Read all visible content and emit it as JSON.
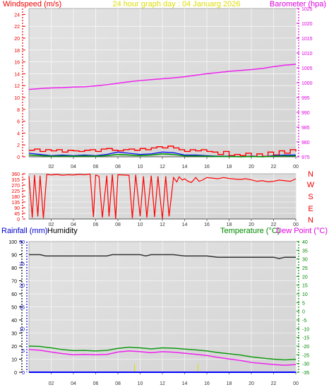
{
  "header": {
    "wind_title": "Windspeed (m/s)",
    "graph_title": "24 hour graph day : 04 Januarg 2026",
    "baro_title": "Barometer (hpa)"
  },
  "lower_header": {
    "rain_title": "Rainfall (mm)",
    "humidity_title": "Humidity",
    "temp_title": "Temperature (°C)",
    "dew_title": "Dew Point (°C)"
  },
  "compass": [
    "N",
    "W",
    "S",
    "E",
    "N"
  ],
  "colors": {
    "plot_bg_light": "#e3e3e3",
    "plot_bg_dark": "#d4d4d4",
    "wind_title": "#ee0000",
    "graph_title": "#dddd00",
    "baro_title": "#dd00dd",
    "rain_title": "#0000cc",
    "humidity_title": "#000000",
    "temp_title": "#008800",
    "dew_title": "#dd00dd",
    "compass": "#ee0000"
  },
  "chart_data": [
    {
      "id": "wind_baro",
      "type": "line",
      "x_ticks": [
        "02",
        "04",
        "06",
        "08",
        "10",
        "12",
        "14",
        "16",
        "18",
        "20",
        "22",
        "00"
      ],
      "ylim_left": [
        0,
        25
      ],
      "yticks_left": [
        "24",
        "22",
        "20",
        "18",
        "16",
        "14",
        "12",
        "10",
        "8",
        "6",
        "4",
        "2",
        "0"
      ],
      "ylim_right": [
        975,
        1025
      ],
      "yticks_right": [
        "1025",
        "1020",
        "1015",
        "1010",
        "1005",
        "1000",
        "995",
        "990",
        "985",
        "980",
        "975"
      ],
      "series": [
        {
          "name": "Barometer",
          "axis": "right",
          "color": "#ee22ee",
          "x": [
            0,
            1,
            2,
            3,
            4,
            5,
            6,
            7,
            8,
            9,
            10,
            11,
            12,
            13,
            14,
            15,
            16,
            17,
            18,
            19,
            20,
            21,
            22,
            23,
            24
          ],
          "values": [
            997.7,
            998.0,
            998.2,
            998.3,
            998.5,
            998.6,
            998.9,
            999.3,
            999.8,
            1000.3,
            1000.7,
            1001.0,
            1001.3,
            1001.6,
            1002.0,
            1002.5,
            1003.0,
            1003.4,
            1003.8,
            1004.1,
            1004.4,
            1004.8,
            1005.4,
            1005.9,
            1006.2
          ]
        },
        {
          "name": "Wind gust",
          "axis": "left",
          "color": "#ff0000",
          "x": [
            0,
            0.5,
            1,
            1.5,
            2,
            2.5,
            3,
            3.5,
            4,
            4.5,
            5,
            5.5,
            6,
            6.5,
            7,
            7.5,
            8,
            8.5,
            9,
            9.5,
            10,
            10.5,
            11,
            11.5,
            12,
            12.5,
            13,
            13.5,
            14,
            14.5,
            15,
            15.5,
            16,
            16.5,
            17,
            17.5,
            18,
            18.5,
            19,
            19.5,
            20,
            20.5,
            21,
            21.5,
            22,
            22.5,
            23,
            23.5,
            24
          ],
          "values": [
            1.1,
            1.3,
            0.9,
            1.2,
            1.0,
            1.2,
            0.8,
            1.1,
            1.0,
            0.9,
            1.1,
            1.2,
            0.9,
            1.3,
            1.4,
            1.1,
            1.0,
            1.2,
            1.3,
            1.1,
            1.4,
            1.2,
            1.5,
            1.7,
            1.5,
            1.8,
            1.5,
            1.2,
            0.9,
            1.2,
            1.0,
            1.2,
            0.9,
            0.8,
            0.4,
            0.9,
            0.2,
            0.4,
            0.2,
            0.6,
            0.1,
            0.5,
            0.1,
            0.8,
            0.3,
            1.0,
            0.6,
            1.2,
            0.9
          ]
        },
        {
          "name": "Wind speed",
          "axis": "left",
          "color": "#0000ff",
          "x": [
            0,
            1,
            2,
            3,
            4,
            5,
            6,
            7,
            8,
            9,
            10,
            11,
            12,
            13,
            14,
            15,
            16,
            17,
            18,
            19,
            20,
            21,
            22,
            23,
            24
          ],
          "values": [
            0.6,
            0.4,
            0.2,
            0.3,
            0.2,
            0.3,
            0.2,
            0.4,
            0.8,
            0.6,
            0.4,
            0.5,
            0.8,
            0.7,
            0.3,
            0.3,
            0.2,
            0.1,
            0.1,
            0.0,
            0.1,
            0.0,
            0.2,
            0.3,
            0.3
          ]
        },
        {
          "name": "Wind average",
          "axis": "left",
          "color": "#009900",
          "x": [
            0,
            1,
            2,
            3,
            4,
            5,
            6,
            7,
            8,
            9,
            10,
            11,
            12,
            13,
            14,
            15,
            16,
            17,
            18,
            19,
            20,
            21,
            22,
            23,
            24
          ],
          "values": [
            0.3,
            0.2,
            0.1,
            0.15,
            0.1,
            0.15,
            0.1,
            0.2,
            0.4,
            0.3,
            0.2,
            0.3,
            0.5,
            0.4,
            0.15,
            0.15,
            0.1,
            0.05,
            0.05,
            0.0,
            0.05,
            0.0,
            0.1,
            0.15,
            0.15
          ]
        }
      ]
    },
    {
      "id": "wind_direction",
      "type": "line",
      "x_ticks": [
        "02",
        "04",
        "06",
        "08",
        "10",
        "12",
        "14",
        "16",
        "18",
        "20",
        "22",
        "00"
      ],
      "ylim": [
        0,
        360
      ],
      "yticks": [
        "360",
        "315",
        "270",
        "225",
        "180",
        "135",
        "90",
        "45",
        "0"
      ],
      "series": [
        {
          "name": "Wind direction",
          "color": "#ff0000",
          "x": [
            0,
            0.3,
            0.5,
            0.8,
            1.0,
            1.3,
            1.6,
            2.0,
            2.5,
            3.0,
            3.5,
            4.0,
            4.5,
            5.0,
            5.5,
            5.8,
            6.0,
            6.3,
            6.6,
            7.0,
            7.2,
            7.5,
            7.8,
            8.0,
            8.5,
            9.0,
            9.3,
            9.6,
            10.0,
            10.3,
            10.6,
            11.0,
            11.3,
            11.6,
            12.0,
            12.3,
            12.6,
            13.0,
            13.3,
            13.5,
            13.8,
            14.0,
            14.3,
            14.6,
            15.0,
            15.3,
            15.6,
            16.0,
            16.5,
            17.0,
            17.5,
            18.0,
            18.5,
            19.0,
            19.5,
            20.0,
            20.5,
            21.0,
            21.5,
            22.0,
            22.5,
            23.0,
            23.5,
            24.0
          ],
          "values": [
            340,
            10,
            350,
            20,
            345,
            5,
            355,
            350,
            355,
            348,
            352,
            350,
            355,
            352,
            358,
            15,
            350,
            340,
            10,
            345,
            20,
            355,
            0,
            352,
            350,
            348,
            5,
            352,
            20,
            340,
            10,
            345,
            15,
            340,
            0,
            340,
            20,
            330,
            295,
            335,
            310,
            320,
            300,
            290,
            330,
            300,
            310,
            330,
            325,
            320,
            330,
            322,
            318,
            315,
            320,
            312,
            300,
            305,
            295,
            300,
            310,
            305,
            300,
            320
          ]
        }
      ]
    },
    {
      "id": "temp_humidity_rain",
      "type": "line",
      "x_ticks": [
        "02",
        "04",
        "06",
        "08",
        "10",
        "12",
        "14",
        "16",
        "18",
        "20",
        "22",
        "00"
      ],
      "ylim_humidity": [
        0,
        100
      ],
      "yticks_humidity": [
        "100",
        "90",
        "80",
        "70",
        "60",
        "50",
        "40",
        "30",
        "20",
        "10",
        "0"
      ],
      "ylim_rain": [
        0,
        30
      ],
      "yticks_rain": [
        "30",
        "25",
        "20",
        "15",
        "10",
        "5",
        "0"
      ],
      "ylim_temp": [
        -35,
        40
      ],
      "yticks_temp": [
        "40",
        "35",
        "30",
        "25",
        "20",
        "15",
        "10",
        "5",
        "0",
        "-5",
        "-10",
        "-15",
        "-20",
        "-25",
        "-30",
        "-35"
      ],
      "series": [
        {
          "name": "Humidity",
          "axis": "humidity",
          "color": "#333333",
          "x": [
            0,
            1,
            1.5,
            2,
            3,
            4,
            5,
            6,
            7,
            7.5,
            8,
            9,
            10,
            10.5,
            11,
            12,
            13,
            14,
            15,
            16,
            17,
            18,
            19,
            20,
            20.5,
            21,
            22,
            22.5,
            23,
            24
          ],
          "values": [
            90,
            90,
            89,
            89,
            89,
            89,
            89,
            89,
            89,
            90,
            90,
            90,
            90,
            89,
            90,
            90,
            90,
            89,
            89,
            89,
            88,
            88,
            88,
            88,
            88,
            88,
            88,
            87,
            88,
            88
          ]
        },
        {
          "name": "Temperature",
          "axis": "temp",
          "color": "#119911",
          "x": [
            0,
            1,
            2,
            3,
            4,
            5,
            6,
            7,
            8,
            9,
            10,
            11,
            12,
            13,
            14,
            15,
            16,
            17,
            18,
            19,
            20,
            21,
            22,
            23,
            24
          ],
          "values": [
            -20.0,
            -20.2,
            -21.0,
            -22.0,
            -22.6,
            -22.5,
            -22.8,
            -22.5,
            -21.3,
            -20.6,
            -21.0,
            -21.6,
            -21.0,
            -21.2,
            -21.7,
            -22.2,
            -22.8,
            -23.7,
            -24.4,
            -25.1,
            -26.2,
            -26.9,
            -27.5,
            -27.9,
            -27.6
          ]
        },
        {
          "name": "Dew Point",
          "axis": "temp",
          "color": "#ee22ee",
          "x": [
            0,
            1,
            2,
            3,
            4,
            5,
            6,
            7,
            8,
            9,
            10,
            11,
            12,
            13,
            14,
            15,
            16,
            17,
            18,
            19,
            20,
            21,
            22,
            23,
            24
          ],
          "values": [
            -22.0,
            -22.4,
            -23.4,
            -24.3,
            -25.0,
            -24.8,
            -25.0,
            -24.8,
            -23.4,
            -22.8,
            -23.2,
            -23.8,
            -23.2,
            -23.5,
            -24.1,
            -24.7,
            -25.4,
            -26.5,
            -27.4,
            -28.2,
            -29.4,
            -30.0,
            -30.6,
            -31.0,
            -30.6
          ]
        },
        {
          "name": "Rainfall",
          "axis": "rain",
          "color": "#0000ff",
          "x": [
            0,
            24
          ],
          "values": [
            0,
            0
          ]
        }
      ]
    }
  ]
}
